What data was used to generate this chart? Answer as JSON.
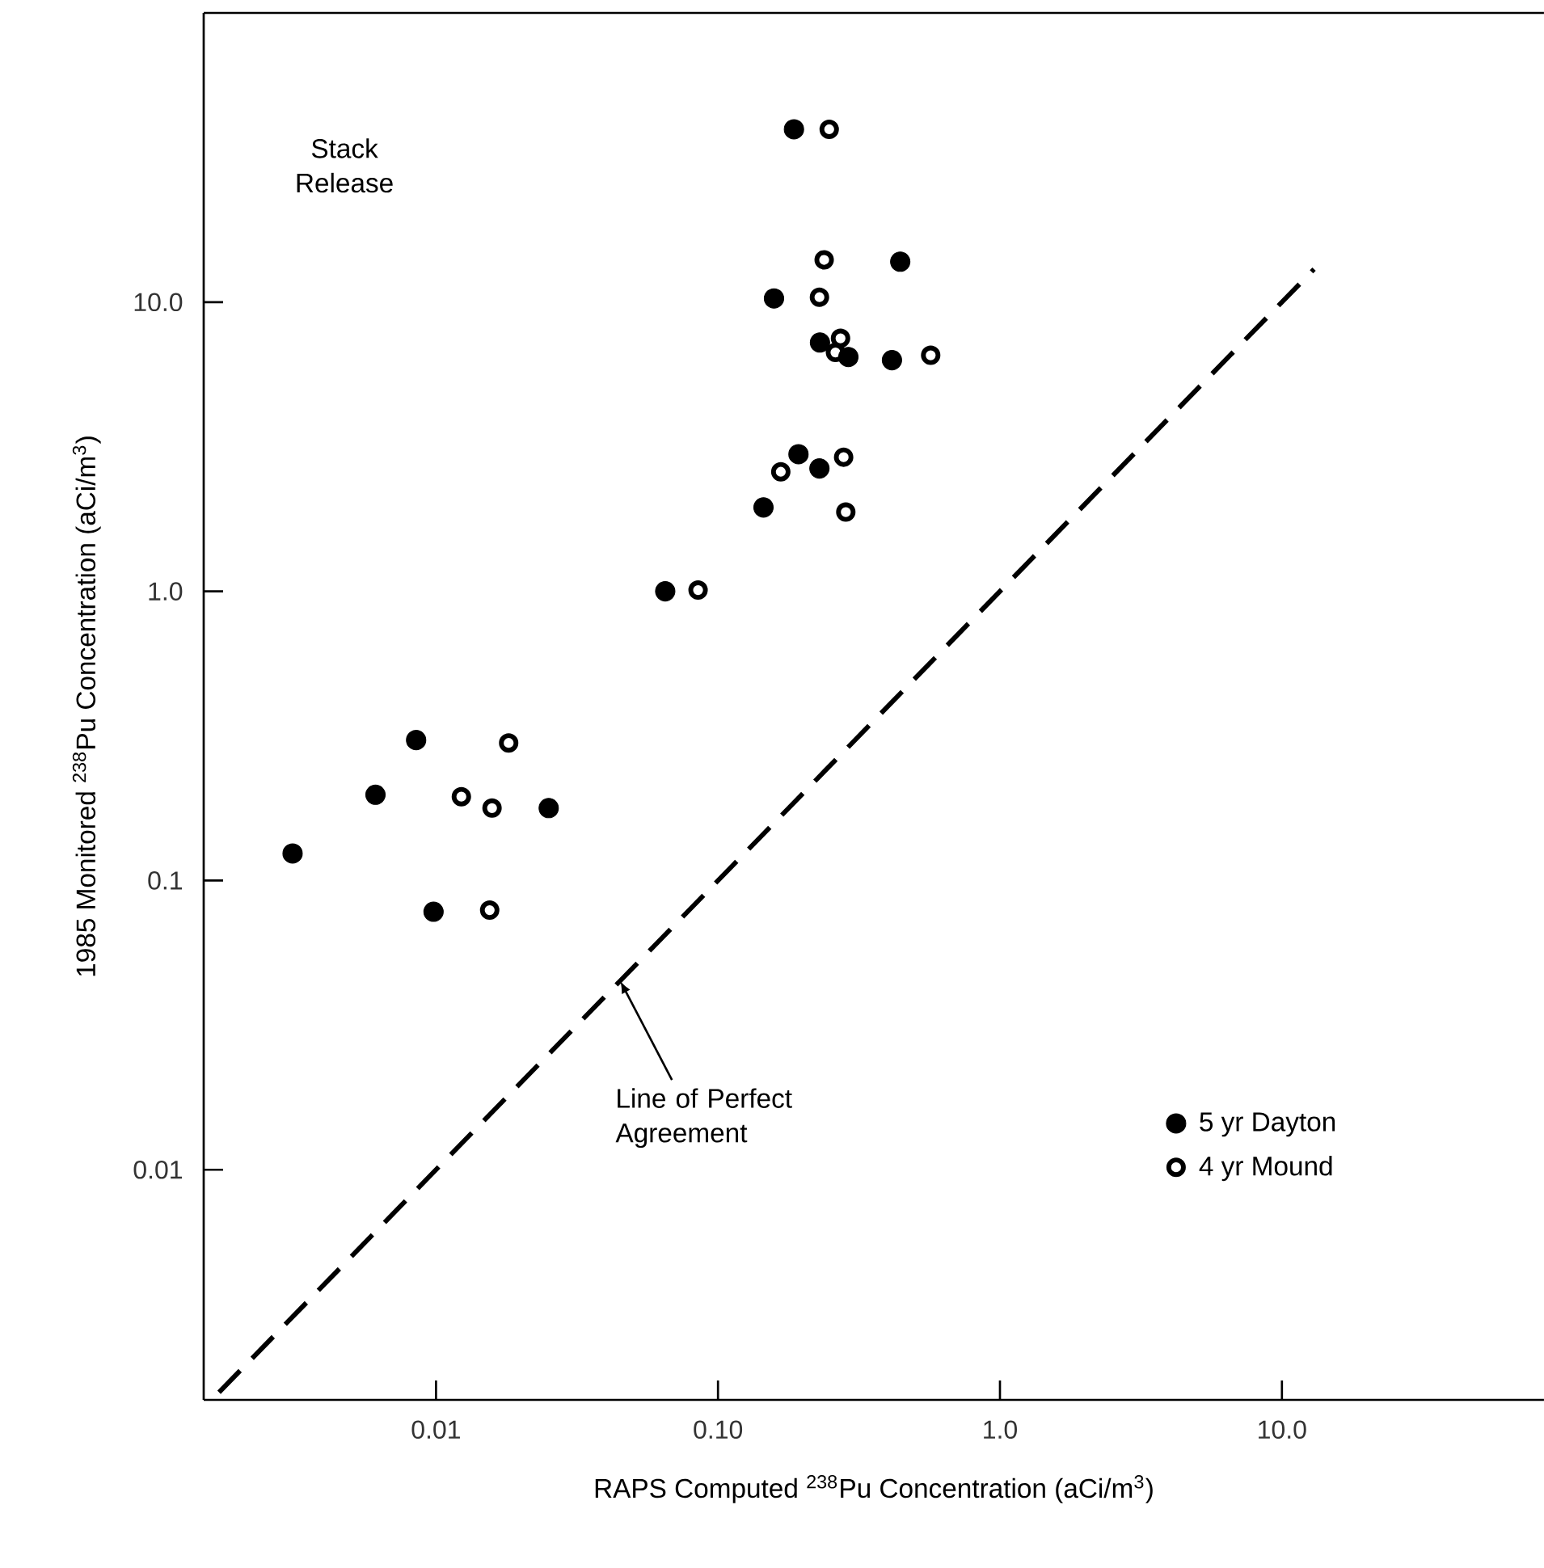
{
  "chart_data": {
    "type": "scatter",
    "xlabel": "RAPS Computed $^{238}$Pu Concentration (aCi/m$^{3}$)",
    "ylabel": "1985 Monitored $^{238}$Pu Concentration (aCi/m$^{3}$)",
    "log": "xy",
    "xlim": [
      0.0015,
      85
    ],
    "ylim": [
      0.0016,
      100
    ],
    "xticks": [
      {
        "value": 0.01,
        "label": "0.01"
      },
      {
        "value": 0.1,
        "label": "0.10"
      },
      {
        "value": 1,
        "label": "1.0"
      },
      {
        "value": 10,
        "label": "10.0"
      }
    ],
    "yticks": [
      {
        "value": 0.01,
        "label": "0.01"
      },
      {
        "value": 0.1,
        "label": "0.1"
      },
      {
        "value": 1,
        "label": "1.0"
      },
      {
        "value": 10,
        "label": "10.0"
      }
    ],
    "legend": "bottom right",
    "annotations": [
      "Stack Release",
      {
        "text": "Line of Perfect Agreement",
        "x": 0.045,
        "y": 0.045
      }
    ],
    "series": [
      {
        "name": "5 yr Dayton",
        "color": "#000000",
        "marker": "circle",
        "x": [
          0.186,
          0.443,
          0.158,
          0.23,
          0.29,
          0.414,
          0.193,
          0.229,
          0.145,
          0.065,
          0.0085,
          0.0061,
          0.0251,
          0.0031,
          0.0098
        ],
        "values": [
          39.6,
          13.8,
          10.3,
          7.25,
          6.46,
          6.3,
          2.98,
          2.66,
          1.95,
          1.0,
          0.306,
          0.198,
          0.178,
          0.124,
          0.078
        ]
      },
      {
        "name": "4 yr Mound",
        "color": "#000000",
        "marker": "open circle",
        "x": [
          0.248,
          0.238,
          0.229,
          0.272,
          0.261,
          0.568,
          0.167,
          0.279,
          0.284,
          0.085,
          0.0181,
          0.0123,
          0.0158,
          0.0155
        ],
        "values": [
          39.6,
          14.0,
          10.4,
          7.5,
          6.7,
          6.55,
          2.59,
          2.91,
          1.88,
          1.01,
          0.299,
          0.195,
          0.178,
          0.079
        ]
      },
      {
        "type": "line",
        "color": "#000000",
        "line_style": "dashed",
        "marker": "none",
        "x": [
          0.0017,
          13
        ],
        "values": [
          0.0017,
          13
        ]
      }
    ]
  }
}
